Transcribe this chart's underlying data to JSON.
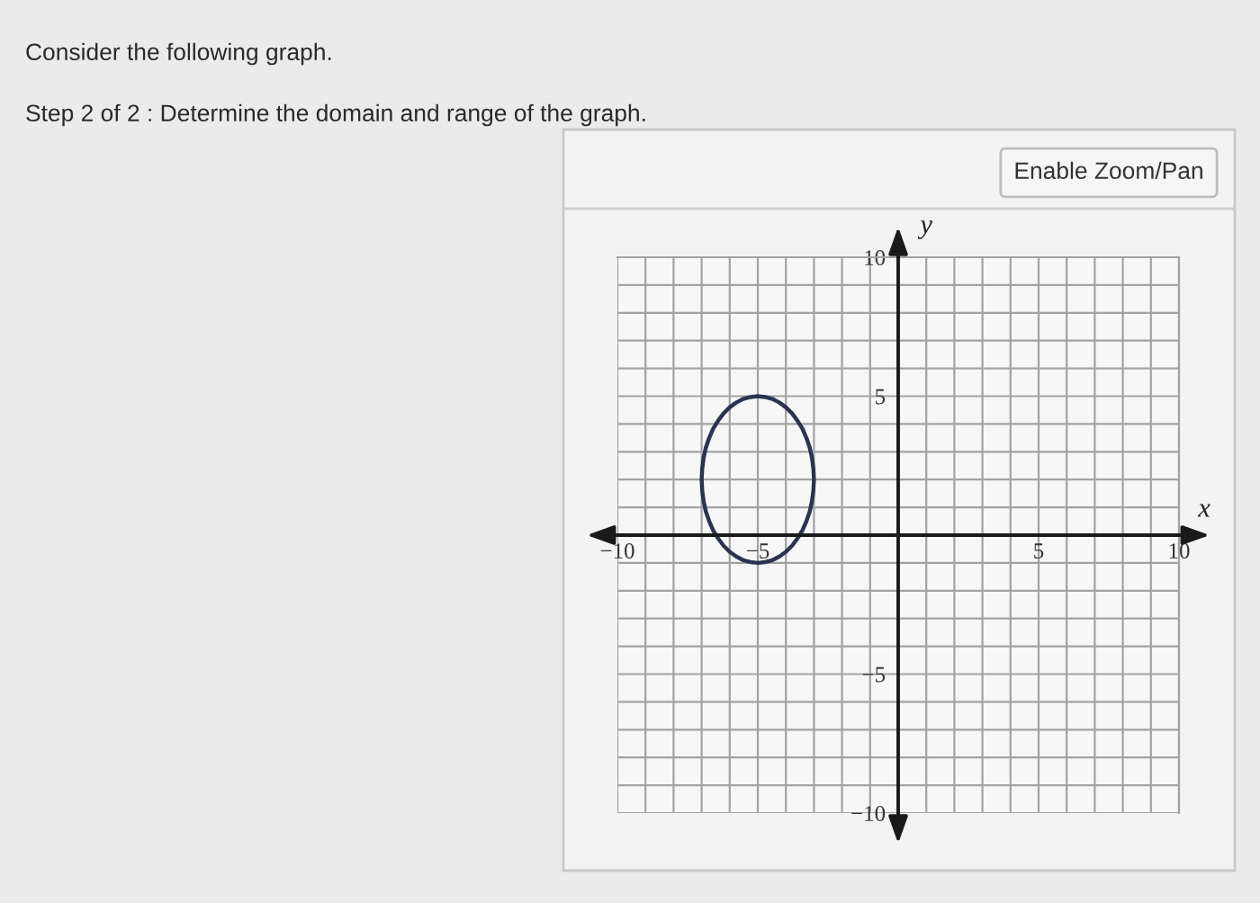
{
  "chart_data": {
    "type": "line",
    "title": "Consider the following graph.",
    "subtitle": "Step 2 of 2 : Determine the domain and range of the graph.",
    "annotations": [
      "Enable Zoom/Pan"
    ],
    "xlabel": "x",
    "ylabel": "y",
    "series": [
      {
        "color": "#2c3352",
        "x": [
          -7,
          -6.98,
          -6.93,
          -6.85,
          -6.73,
          -6.59,
          -6.41,
          -6.22,
          -6,
          -5.77,
          -5.52,
          -5.26,
          -5,
          -4.74,
          -4.48,
          -4.23,
          -4,
          -3.78,
          -3.59,
          -3.41,
          -3.27,
          -3.15,
          -3.07,
          -3.02,
          -3,
          null,
          -3,
          -3.02,
          -3.07,
          -3.15,
          -3.27,
          -3.41,
          -3.59,
          -3.78,
          -4,
          -4.23,
          -4.48,
          -4.74,
          -5,
          -5.26,
          -5.52,
          -5.77,
          -6,
          -6.22,
          -6.41,
          -6.59,
          -6.73,
          -6.85,
          -6.93,
          -6.98,
          -7
        ],
        "values": [
          2,
          2.39,
          2.78,
          3.15,
          3.5,
          3.83,
          4.12,
          4.38,
          4.6,
          4.77,
          4.9,
          4.97,
          5,
          4.97,
          4.9,
          4.77,
          4.6,
          4.38,
          4.12,
          3.83,
          3.5,
          3.15,
          2.78,
          2.39,
          2,
          null,
          2,
          1.61,
          1.22,
          0.85,
          0.5,
          0.17,
          -0.12,
          -0.38,
          -0.6,
          -0.77,
          -0.9,
          -0.97,
          -1,
          -0.97,
          -0.9,
          -0.77,
          -0.6,
          -0.38,
          -0.12,
          0.17,
          0.5,
          0.85,
          1.22,
          1.61,
          2
        ]
      }
    ],
    "xlim": [
      -10,
      10
    ],
    "ylim": [
      -10,
      10
    ],
    "xticks": [
      {
        "value": -10,
        "label": "−10"
      },
      {
        "value": -9,
        "label": null
      },
      {
        "value": -8,
        "label": null
      },
      {
        "value": -7,
        "label": null
      },
      {
        "value": -6,
        "label": null
      },
      {
        "value": -5,
        "label": "−5"
      },
      {
        "value": -4,
        "label": null
      },
      {
        "value": -3,
        "label": null
      },
      {
        "value": -2,
        "label": null
      },
      {
        "value": -1,
        "label": null
      },
      {
        "value": 1,
        "label": null
      },
      {
        "value": 2,
        "label": null
      },
      {
        "value": 3,
        "label": null
      },
      {
        "value": 4,
        "label": null
      },
      5,
      {
        "value": 6,
        "label": null
      },
      {
        "value": 7,
        "label": null
      },
      {
        "value": 8,
        "label": null
      },
      {
        "value": 9,
        "label": null
      },
      10
    ],
    "yticks": [
      {
        "value": -10,
        "label": "−10"
      },
      {
        "value": -9,
        "label": null
      },
      {
        "value": -8,
        "label": null
      },
      {
        "value": -7,
        "label": null
      },
      {
        "value": -6,
        "label": null
      },
      {
        "value": -5,
        "label": "−5"
      },
      {
        "value": -4,
        "label": null
      },
      {
        "value": -3,
        "label": null
      },
      {
        "value": -2,
        "label": null
      },
      {
        "value": -1,
        "label": null
      },
      {
        "value": 1,
        "label": null
      },
      {
        "value": 2,
        "label": null
      },
      {
        "value": 3,
        "label": null
      },
      {
        "value": 4,
        "label": null
      },
      5,
      {
        "value": 6,
        "label": null
      },
      {
        "value": 7,
        "label": null
      },
      {
        "value": 8,
        "label": null
      },
      {
        "value": 9,
        "label": null
      },
      10
    ],
    "grid": true
  }
}
